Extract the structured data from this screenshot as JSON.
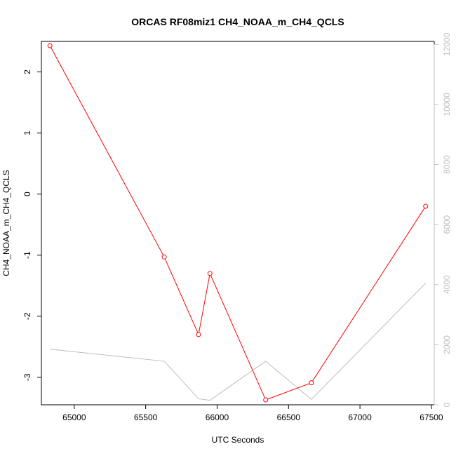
{
  "chart_data": {
    "type": "line",
    "title": "ORCAS RF08miz1 CH4_NOAA_m_CH4_QCLS",
    "xlabel": "UTC Seconds",
    "ylabel": "CH4_NOAA_m_CH4_QCLS",
    "xlim": [
      64770,
      67520
    ],
    "ylim": [
      -3.45,
      2.5
    ],
    "y2lim": [
      0,
      12100
    ],
    "x_ticks": [
      65000,
      65500,
      66000,
      66500,
      67000,
      67500
    ],
    "y_ticks": [
      -3,
      -2,
      -1,
      0,
      1,
      2
    ],
    "y2_ticks": [
      0,
      2000,
      4000,
      6000,
      8000,
      10000,
      12000
    ],
    "grid": false,
    "series": [
      {
        "color": "#ff0000",
        "axis": "left",
        "markers": "open-circle",
        "x": [
          64830,
          65630,
          65870,
          65950,
          66340,
          66660,
          67460
        ],
        "y": [
          2.43,
          -1.03,
          -2.3,
          -1.3,
          -3.37,
          -3.09,
          -0.2
        ]
      },
      {
        "color": "#bebebe",
        "axis": "right",
        "markers": "none",
        "x": [
          64830,
          65630,
          65870,
          65950,
          66340,
          66660,
          67460
        ],
        "y": [
          1850,
          1450,
          200,
          150,
          1450,
          180,
          4050
        ]
      }
    ]
  }
}
